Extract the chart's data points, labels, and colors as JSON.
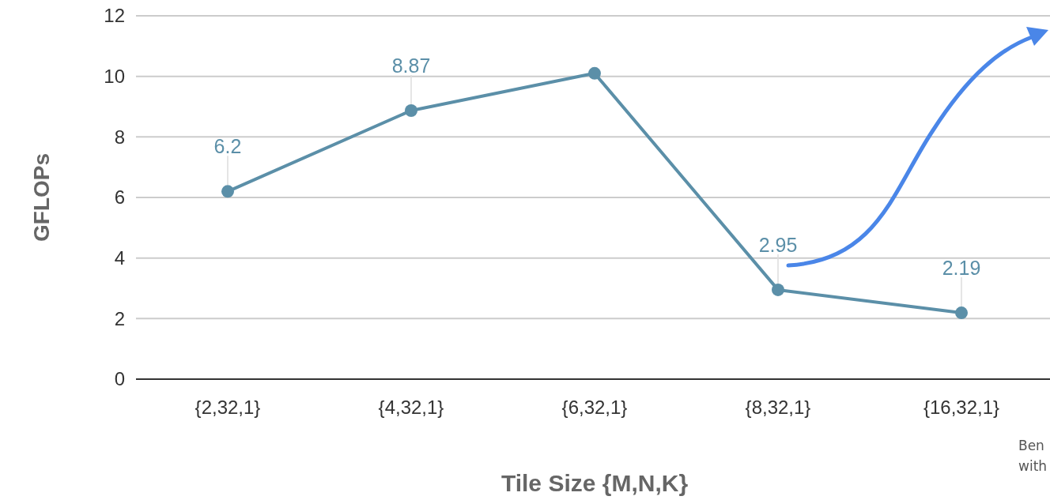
{
  "chart_data": {
    "type": "line",
    "xlabel": "Tile Size {M,N,K}",
    "ylabel": "GFLOPs",
    "categories": [
      "{2,32,1}",
      "{4,32,1}",
      "{6,32,1}",
      "{8,32,1}",
      "{16,32,1}"
    ],
    "series": [
      {
        "color": "#5b8fa8",
        "values": [
          6.2,
          8.87,
          10.1,
          2.95,
          2.19
        ],
        "value_labels": [
          "6.2",
          "8.87",
          null,
          "2.95",
          "2.19"
        ]
      }
    ],
    "ylim": [
      0,
      12
    ],
    "yticks": [
      0,
      2,
      4,
      6,
      8,
      10,
      12
    ],
    "grid": "y",
    "marker": "circle",
    "line_style": "solid",
    "annotations": [
      "Ben",
      "with"
    ]
  }
}
